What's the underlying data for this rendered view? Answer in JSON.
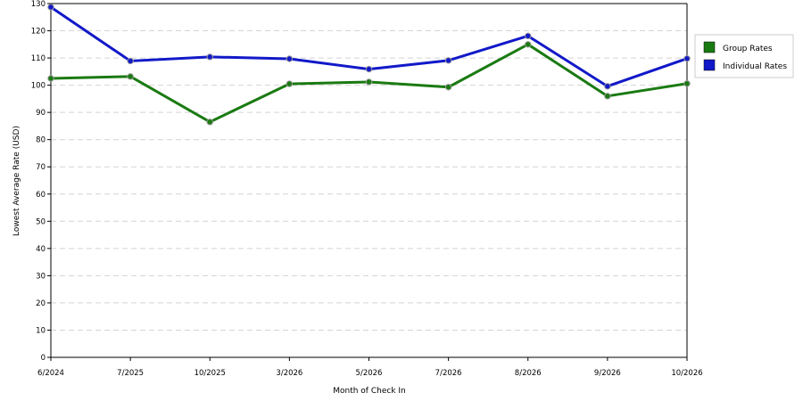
{
  "chart_data": {
    "type": "line",
    "xlabel": "Month of Check In",
    "ylabel": "Lowest Average Rate (USD)",
    "categories": [
      "6/2024",
      "7/2025",
      "10/2025",
      "3/2026",
      "5/2026",
      "7/2026",
      "8/2026",
      "9/2026",
      "10/2026"
    ],
    "yticks": [
      0,
      10,
      20,
      30,
      40,
      50,
      60,
      70,
      80,
      90,
      100,
      110,
      120,
      130
    ],
    "ylim": [
      0,
      130
    ],
    "grid": true,
    "legend_position": "right",
    "series": [
      {
        "name": "Group Rates",
        "color": "#1a7a12",
        "values": [
          102.5,
          103.2,
          86.5,
          100.5,
          101.2,
          99.3,
          115.0,
          96.0,
          100.6
        ]
      },
      {
        "name": "Individual Rates",
        "color": "#1219c8",
        "values": [
          128.7,
          108.9,
          110.4,
          109.7,
          105.9,
          109.1,
          118.1,
          99.6,
          109.8
        ]
      }
    ]
  }
}
